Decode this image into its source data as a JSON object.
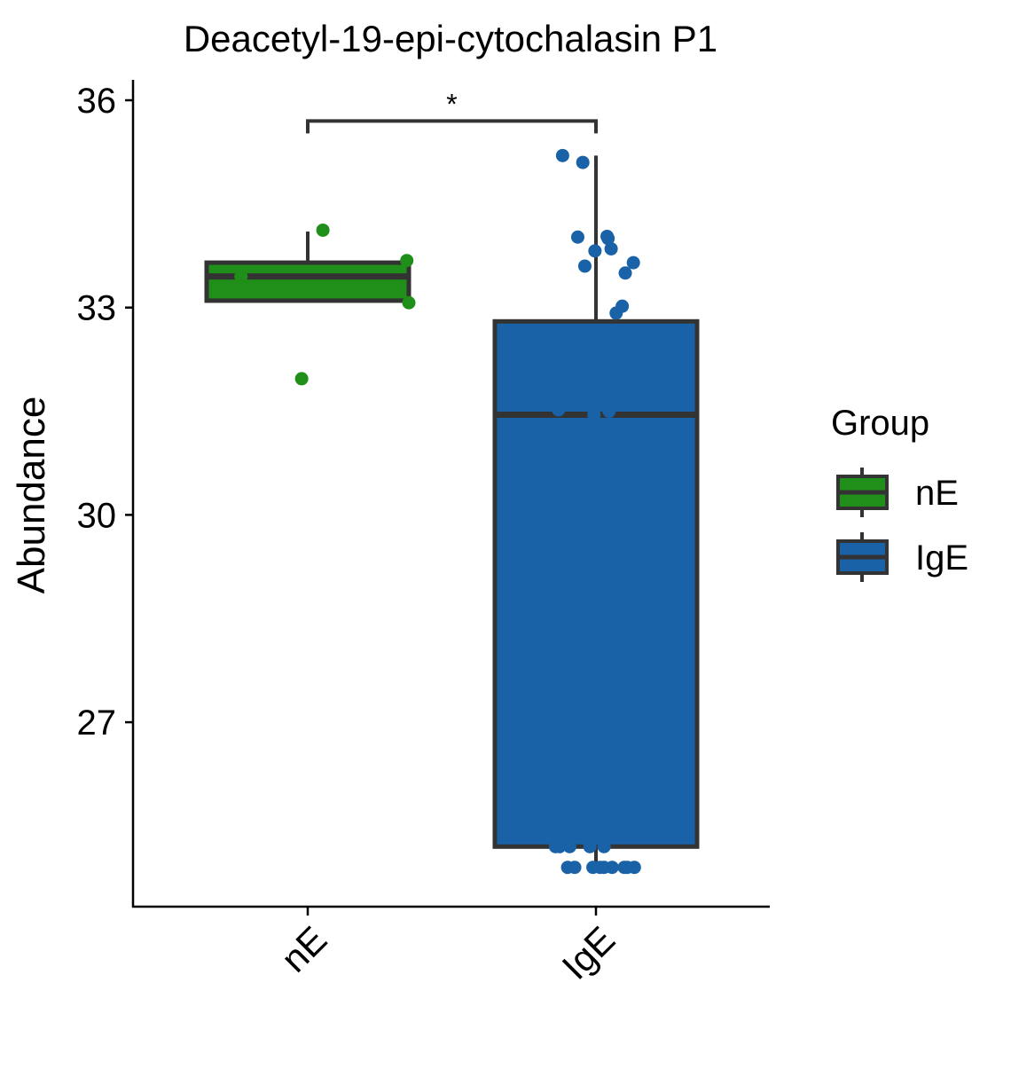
{
  "chart_data": {
    "type": "box",
    "title": "Deacetyl-19-epi-cytochalasin P1",
    "xlabel": "",
    "ylabel": "Abundance",
    "categories": [
      "nE",
      "IgE"
    ],
    "yticks": [
      "36",
      "33",
      "30",
      "27"
    ],
    "ylim": [
      24.7,
      36.3
    ],
    "grid": false,
    "legend": {
      "title": "Group",
      "position": "right",
      "entries": [
        "nE",
        "IgE"
      ]
    },
    "significance": {
      "label": "*",
      "pair": [
        "nE",
        "IgE"
      ],
      "y": 35.7
    },
    "colors": {
      "nE": "#1f8f1a",
      "IgE": "#1a62a8",
      "outline": "#333333"
    },
    "boxes": [
      {
        "name": "nE",
        "whisker_low": 33.1,
        "q1": 33.1,
        "median": 33.45,
        "q3": 33.65,
        "whisker_high": 34.1
      },
      {
        "name": "IgE",
        "whisker_low": 24.9,
        "q1": 25.2,
        "median": 31.45,
        "q3": 32.8,
        "whisker_high": 35.2
      }
    ],
    "points": [
      {
        "group": "nE",
        "values": [
          34.12,
          33.68,
          33.45,
          33.07,
          31.97
        ]
      },
      {
        "group": "IgE",
        "values": [
          35.2,
          35.1,
          34.02,
          34.03,
          34.0,
          33.85,
          33.82,
          33.6,
          33.65,
          33.5,
          33.02,
          32.92,
          32.67,
          32.4,
          32.1,
          31.52,
          31.45,
          31.5,
          29.05,
          29.0,
          25.5,
          25.2,
          25.2,
          25.2,
          25.2,
          25.2,
          24.9,
          24.9,
          24.9,
          24.9,
          24.9,
          24.9,
          24.9,
          24.9,
          24.9
        ],
        "jitter": [
          -0.33,
          -0.13,
          -0.18,
          0.11,
          0.12,
          0.15,
          -0.01,
          -0.11,
          0.37,
          0.29,
          0.26,
          0.2,
          -0.39,
          -0.38,
          -0.35,
          -0.37,
          -0.02,
          0.13,
          -0.35,
          -0.36,
          0.37,
          -0.4,
          -0.36,
          -0.26,
          -0.06,
          0.08,
          -0.28,
          -0.21,
          -0.03,
          0.04,
          0.08,
          0.16,
          0.28,
          0.31,
          0.38
        ]
      }
    ]
  }
}
